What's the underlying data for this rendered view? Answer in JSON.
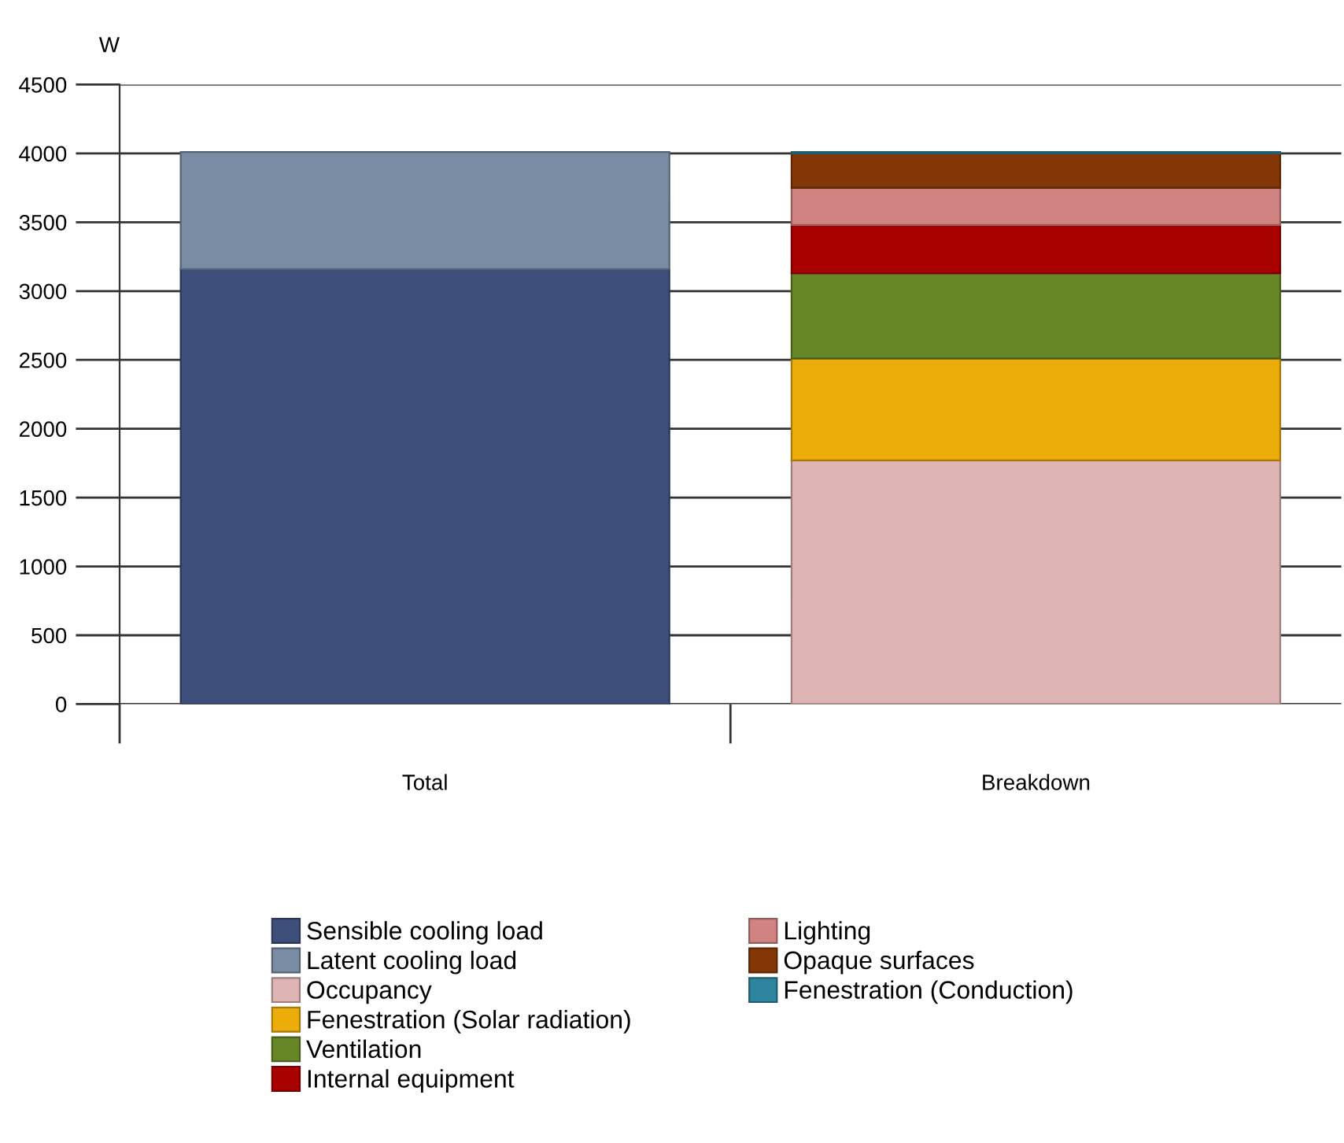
{
  "chart_data": {
    "type": "bar",
    "stacked": true,
    "ylabel": "W",
    "categories": [
      "Total",
      "Breakdown"
    ],
    "series": [
      {
        "name": "Sensible cooling load",
        "color": "#3d4f7a",
        "values": [
          3160,
          null
        ]
      },
      {
        "name": "Latent cooling load",
        "color": "#7a8ca4",
        "values": [
          850,
          null
        ]
      },
      {
        "name": "Occupancy",
        "color": "#dfb4b4",
        "values": [
          null,
          1770
        ]
      },
      {
        "name": "Fenestration (Solar radiation)",
        "color": "#ecac0a",
        "values": [
          null,
          740
        ]
      },
      {
        "name": "Ventilation",
        "color": "#678628",
        "values": [
          null,
          620
        ]
      },
      {
        "name": "Internal equipment",
        "color": "#a90000",
        "values": [
          null,
          350
        ]
      },
      {
        "name": "Lighting",
        "color": "#d18382",
        "values": [
          null,
          270
        ]
      },
      {
        "name": "Opaque surfaces",
        "color": "#833706",
        "values": [
          null,
          250
        ]
      },
      {
        "name": "Fenestration (Conduction)",
        "color": "#2f849e",
        "values": [
          null,
          10
        ]
      }
    ],
    "ylim": [
      0,
      4500
    ],
    "yticks": [
      0,
      500,
      1000,
      1500,
      2000,
      2500,
      3000,
      3500,
      4000,
      4500
    ],
    "grid": "y",
    "legend": "bottom"
  }
}
